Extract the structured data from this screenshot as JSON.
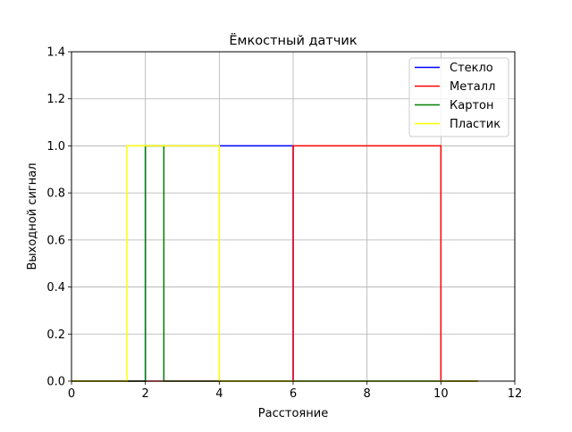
{
  "chart_data": {
    "type": "line",
    "title": "Ёмкостный датчик",
    "xlabel": "Расстояние",
    "ylabel": "Выходной сигнал",
    "xlim": [
      0,
      12
    ],
    "ylim": [
      0,
      1.4
    ],
    "xticks": [
      0,
      2,
      4,
      6,
      8,
      10,
      12
    ],
    "yticks": [
      0.0,
      0.2,
      0.4,
      0.6,
      0.8,
      1.0,
      1.2,
      1.4
    ],
    "xtick_labels": [
      "0",
      "2",
      "4",
      "6",
      "8",
      "10",
      "12"
    ],
    "ytick_labels": [
      "0.0",
      "0.2",
      "0.4",
      "0.6",
      "0.8",
      "1.0",
      "1.2",
      "1.4"
    ],
    "grid": true,
    "legend_position": "top-right",
    "series": [
      {
        "name": "Стекло",
        "color": "#0000ff",
        "x": [
          0,
          2,
          2,
          6,
          6,
          11
        ],
        "y": [
          0,
          0,
          1,
          1,
          0,
          0
        ]
      },
      {
        "name": "Металл",
        "color": "#ff0000",
        "x": [
          0,
          6,
          6,
          10,
          10,
          11
        ],
        "y": [
          0,
          0,
          1,
          1,
          0,
          0
        ]
      },
      {
        "name": "Картон",
        "color": "#008000",
        "x": [
          0,
          2,
          2,
          2.5,
          2.5,
          11
        ],
        "y": [
          0,
          0,
          1,
          1,
          0,
          0
        ]
      },
      {
        "name": "Пластик",
        "color": "#ffff00",
        "x": [
          0,
          1.5,
          1.5,
          4,
          4,
          11
        ],
        "y": [
          0,
          0,
          1,
          1,
          0,
          0
        ]
      }
    ]
  }
}
